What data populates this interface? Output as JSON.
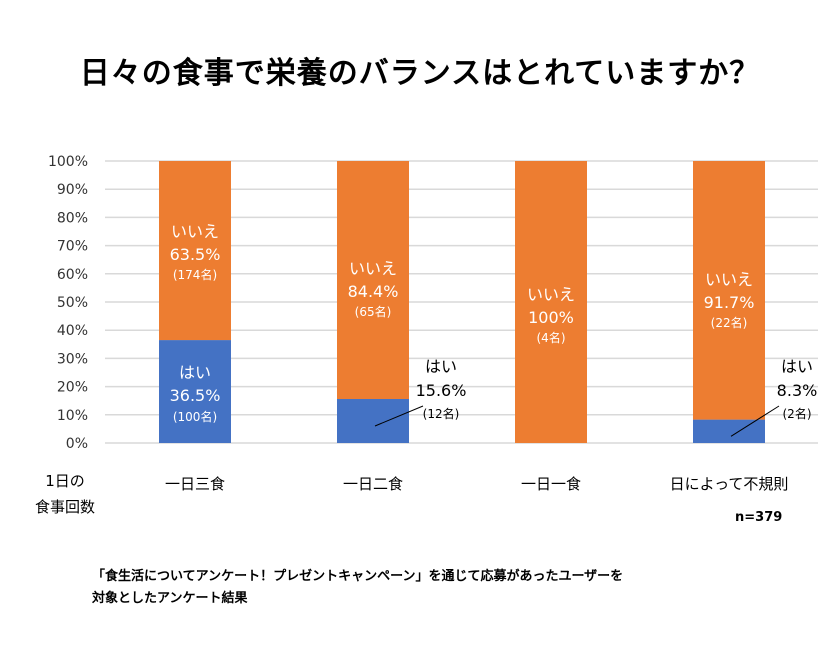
{
  "chart_data": {
    "type": "bar",
    "stacked": true,
    "title": "日々の食事で栄養のバランスはとれていますか？",
    "xlabel": "1日の食事回数",
    "ylabel": "",
    "ylim": [
      0,
      100
    ],
    "yticks": [
      "0%",
      "10%",
      "20%",
      "30%",
      "40%",
      "50%",
      "60%",
      "70%",
      "80%",
      "90%",
      "100%"
    ],
    "grid": true,
    "categories": [
      "一日三食",
      "一日二食",
      "一日一食",
      "日によって不規則"
    ],
    "series": [
      {
        "name": "はい",
        "color": "#4472C4",
        "values": [
          36.5,
          15.6,
          0,
          8.3
        ],
        "labels": [
          "36.5%",
          "15.6%",
          "",
          "8.3%"
        ],
        "counts": [
          "(100名)",
          "(12名)",
          "",
          "(2名)"
        ]
      },
      {
        "name": "いいえ",
        "color": "#ED7D31",
        "values": [
          63.5,
          84.4,
          100,
          91.7
        ],
        "labels": [
          "63.5%",
          "84.4%",
          "100%",
          "91.7%"
        ],
        "counts": [
          "(174名)",
          "(65名)",
          "(4名)",
          "(22名)"
        ]
      }
    ],
    "annotation": "n=379"
  },
  "title": "日々の食事で栄養のバランスはとれていますか？",
  "xaxis_title_lines": [
    "1日の",
    "食事回数"
  ],
  "n_label": "n=379",
  "footnote_lines": [
    "「食生活についてアンケート！プレゼントキャンペーン」を通じて応募があったユーザーを",
    "対象としたアンケート結果"
  ]
}
